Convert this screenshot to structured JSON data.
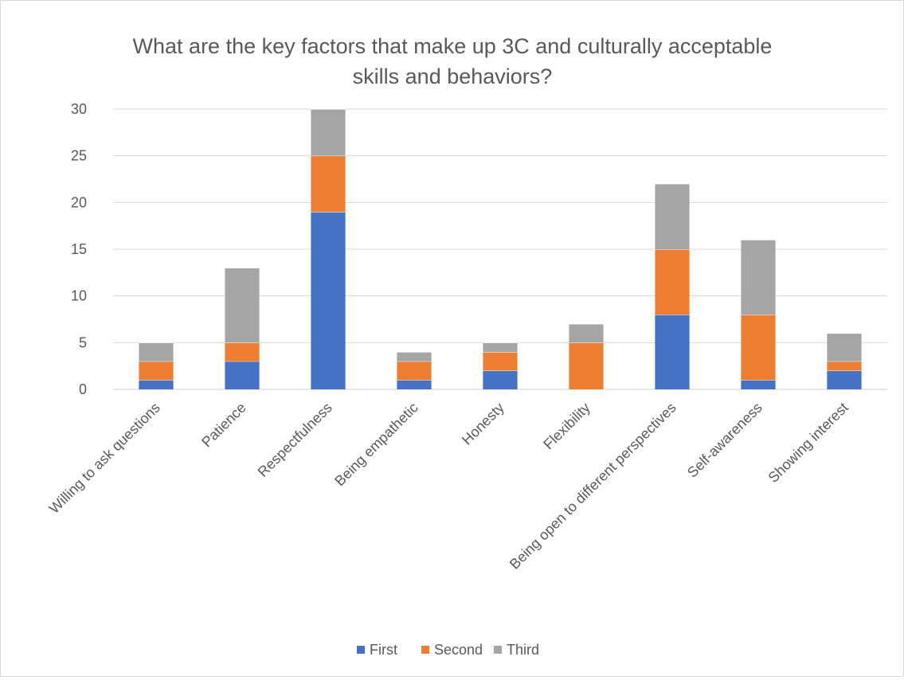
{
  "chart_data": {
    "type": "bar",
    "stacked": true,
    "title_lines": [
      "What are the key factors that make up 3C and culturally acceptable",
      "skills and behaviors?"
    ],
    "categories": [
      "Willing to ask questions",
      "Patience",
      "Respectfulness",
      "Being empathetic",
      "Honesty",
      "Flexibility",
      "Being open to different perspectives",
      "Self-awareness",
      "Showing interest"
    ],
    "series": [
      {
        "name": "First",
        "color": "#4472c4",
        "values": [
          1,
          3,
          19,
          1,
          2,
          0,
          8,
          1,
          2
        ]
      },
      {
        "name": "Second",
        "color": "#ed7d31",
        "values": [
          2,
          2,
          6,
          2,
          2,
          5,
          7,
          7,
          1
        ]
      },
      {
        "name": "Third",
        "color": "#a5a5a5",
        "values": [
          2,
          8,
          5,
          1,
          1,
          2,
          7,
          8,
          3
        ]
      }
    ],
    "ylim": [
      0,
      30
    ],
    "yticks": [
      0,
      5,
      10,
      15,
      20,
      25,
      30
    ],
    "grid": true,
    "legend_position": "bottom"
  }
}
